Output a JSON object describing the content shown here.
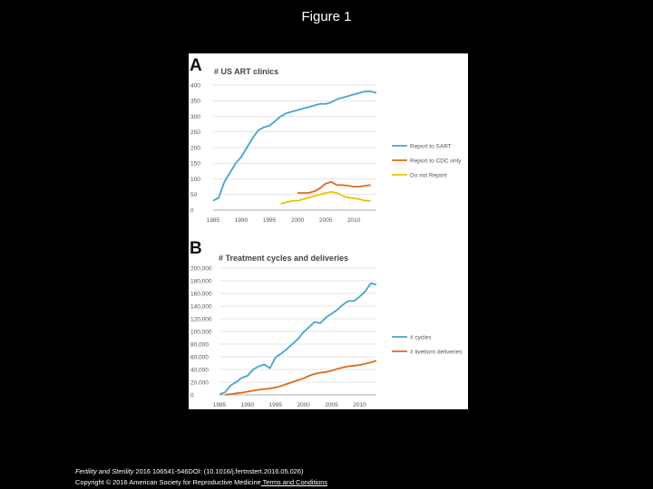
{
  "page": {
    "title": "Figure 1"
  },
  "caption": {
    "journal": "Fertility and Sterility",
    "citation": " 2016 106541-546DOI: (10.1016/j.fertnstert.2016.05.026) ",
    "copyright": "Copyright © 2016 American Society for Reproductive Medicine",
    "terms_link": " Terms and Conditions"
  },
  "colors": {
    "blue": "#4aa3c8",
    "orange": "#e06a1c",
    "yellow": "#e8c400",
    "axis": "#cccccc"
  },
  "chart_data": [
    {
      "type": "line",
      "panel_label": "A",
      "title": "# US ART clinics",
      "xlim": [
        1985,
        2014
      ],
      "ylim": [
        0,
        400
      ],
      "x_ticks": [
        1985,
        1990,
        1995,
        2000,
        2005,
        2010
      ],
      "y_ticks": [
        {
          "value": 0,
          "label": "0"
        },
        {
          "value": 50,
          "label": "50"
        },
        {
          "value": 100,
          "label": "100"
        },
        {
          "value": 150,
          "label": "150"
        },
        {
          "value": 200,
          "label": "200"
        },
        {
          "value": 250,
          "label": "250"
        },
        {
          "value": 300,
          "label": "300"
        },
        {
          "value": 350,
          "label": "350"
        },
        {
          "value": 400,
          "label": "400"
        }
      ],
      "legend": {
        "position": "right"
      },
      "series": [
        {
          "name": "Report to SART",
          "color": "#4aa3c8",
          "x": [
            1985,
            1986,
            1987,
            1988,
            1989,
            1990,
            1991,
            1992,
            1993,
            1994,
            1995,
            1996,
            1997,
            1998,
            1999,
            2000,
            2001,
            2002,
            2003,
            2004,
            2005,
            2006,
            2007,
            2008,
            2009,
            2010,
            2011,
            2012,
            2013,
            2014
          ],
          "y": [
            30,
            40,
            90,
            120,
            150,
            170,
            200,
            230,
            255,
            265,
            270,
            285,
            300,
            310,
            315,
            320,
            325,
            330,
            335,
            340,
            340,
            345,
            355,
            360,
            365,
            370,
            375,
            380,
            380,
            375
          ]
        },
        {
          "name": "Report to CDC only",
          "color": "#e06a1c",
          "x": [
            2000,
            2001,
            2002,
            2003,
            2004,
            2005,
            2006,
            2007,
            2008,
            2009,
            2010,
            2011,
            2012,
            2013
          ],
          "y": [
            55,
            55,
            55,
            60,
            70,
            85,
            90,
            80,
            80,
            78,
            75,
            75,
            78,
            80
          ]
        },
        {
          "name": "Do not Report",
          "color": "#e8c400",
          "x": [
            1997,
            1998,
            1999,
            2000,
            2001,
            2002,
            2003,
            2004,
            2005,
            2006,
            2007,
            2008,
            2009,
            2010,
            2011,
            2012,
            2013
          ],
          "y": [
            20,
            25,
            30,
            30,
            35,
            40,
            45,
            50,
            55,
            58,
            55,
            45,
            40,
            38,
            35,
            30,
            30
          ]
        }
      ]
    },
    {
      "type": "line",
      "panel_label": "B",
      "title": "# Treatment cycles and deliveries",
      "xlim": [
        1985,
        2013
      ],
      "ylim": [
        0,
        200000
      ],
      "x_ticks": [
        1985,
        1990,
        1995,
        2000,
        2005,
        2010
      ],
      "y_ticks": [
        {
          "value": 0,
          "label": "0"
        },
        {
          "value": 20000,
          "label": "20,000"
        },
        {
          "value": 40000,
          "label": "40,000"
        },
        {
          "value": 60000,
          "label": "60,000"
        },
        {
          "value": 80000,
          "label": "80,000"
        },
        {
          "value": 100000,
          "label": "100,000"
        },
        {
          "value": 120000,
          "label": "120,000"
        },
        {
          "value": 140000,
          "label": "140,000"
        },
        {
          "value": 160000,
          "label": "160,000"
        },
        {
          "value": 180000,
          "label": "180,000"
        },
        {
          "value": 200000,
          "label": "200,000"
        }
      ],
      "legend": {
        "position": "right"
      },
      "series": [
        {
          "name": "# cycles",
          "color": "#4aa3c8",
          "x": [
            1985,
            1986,
            1987,
            1988,
            1989,
            1990,
            1991,
            1992,
            1993,
            1994,
            1995,
            1996,
            1997,
            1998,
            1999,
            2000,
            2001,
            2002,
            2003,
            2004,
            2005,
            2006,
            2007,
            2008,
            2009,
            2010,
            2011,
            2012,
            2013
          ],
          "y": [
            1000,
            4000,
            15000,
            20000,
            27000,
            30000,
            40000,
            45000,
            48000,
            42000,
            59000,
            65000,
            72000,
            80000,
            88000,
            99000,
            107000,
            115000,
            113000,
            122000,
            128000,
            134000,
            142000,
            148000,
            148000,
            155000,
            163000,
            176000,
            174000
          ]
        },
        {
          "name": "# liveborn deliveries",
          "color": "#e06a1c",
          "x": [
            1986,
            1987,
            1988,
            1989,
            1990,
            1991,
            1992,
            1993,
            1994,
            1995,
            1996,
            1997,
            1998,
            1999,
            2000,
            2001,
            2002,
            2003,
            2004,
            2005,
            2006,
            2007,
            2008,
            2009,
            2010,
            2011,
            2012,
            2013
          ],
          "y": [
            200,
            1000,
            2500,
            3500,
            5000,
            6500,
            8000,
            9000,
            10000,
            11500,
            14000,
            17000,
            20000,
            23000,
            26000,
            30000,
            33000,
            35000,
            36000,
            38000,
            41000,
            43000,
            45000,
            46000,
            47000,
            49000,
            51000,
            54000
          ]
        }
      ]
    }
  ]
}
